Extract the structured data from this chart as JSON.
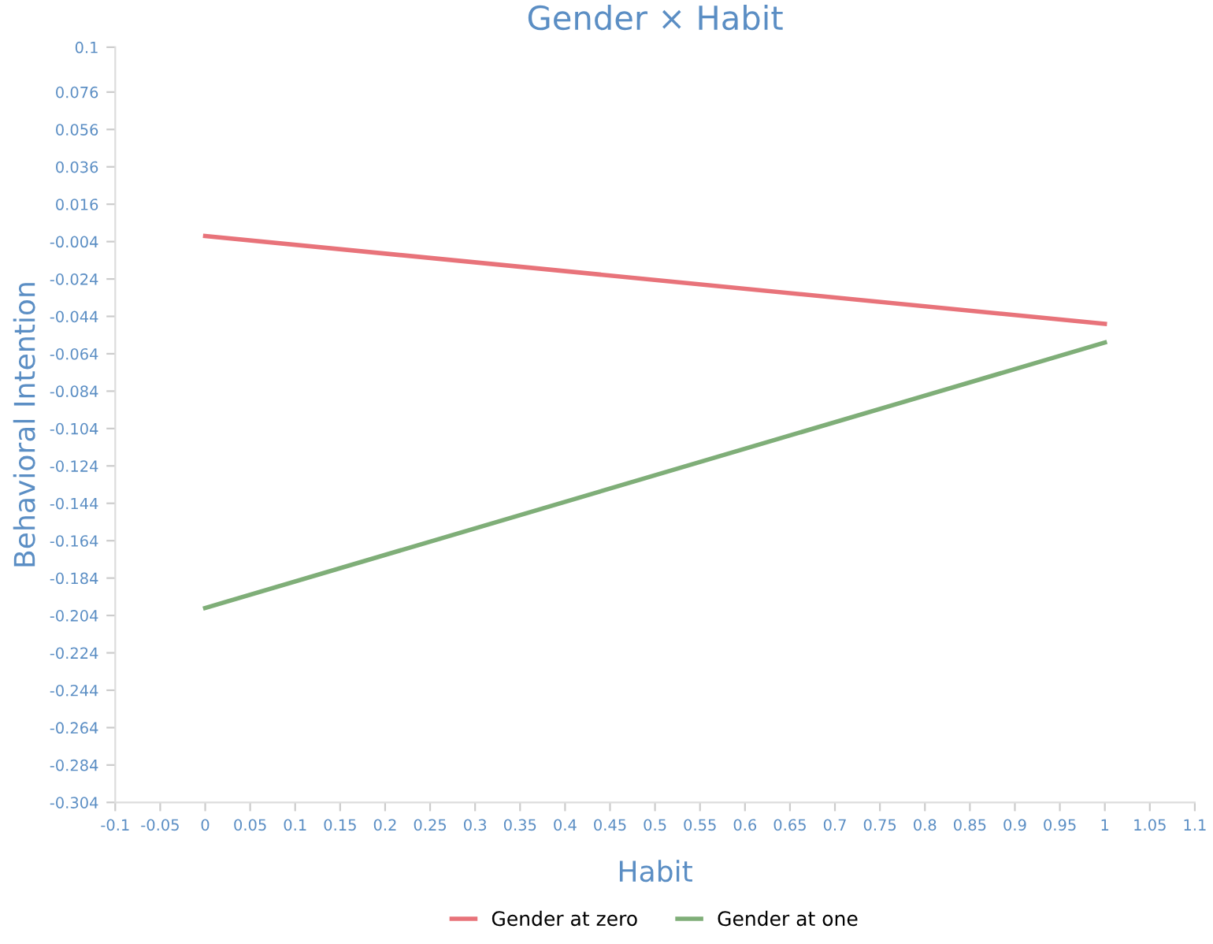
{
  "chart_data": {
    "type": "line",
    "title": "Gender × Habit",
    "xlabel": "Habit",
    "ylabel": "Behavioral Intention",
    "x": [
      0,
      1
    ],
    "series": [
      {
        "name": "Gender at zero",
        "color": "#e8737a",
        "values": [
          -0.001,
          -0.048
        ]
      },
      {
        "name": "Gender at one",
        "color": "#7fae78",
        "values": [
          -0.2,
          -0.058
        ]
      }
    ],
    "xlim": [
      -0.1,
      1.1
    ],
    "xticks": [
      -0.1,
      -0.05,
      0,
      0.05,
      0.1,
      0.15,
      0.2,
      0.25,
      0.3,
      0.35,
      0.4,
      0.45,
      0.5,
      0.55,
      0.6,
      0.65,
      0.7,
      0.75,
      0.8,
      0.85,
      0.9,
      0.95,
      1,
      1.05,
      1.1
    ],
    "ylim": [
      -0.304,
      0.1
    ],
    "yticks": [
      0.1,
      0.076,
      0.056,
      0.036,
      0.016,
      -0.004,
      -0.024,
      -0.044,
      -0.064,
      -0.084,
      -0.104,
      -0.124,
      -0.144,
      -0.164,
      -0.184,
      -0.204,
      -0.224,
      -0.244,
      -0.264,
      -0.284,
      -0.304
    ],
    "grid": false,
    "legend": "bottom",
    "marker": "none",
    "line_style": "solid"
  }
}
